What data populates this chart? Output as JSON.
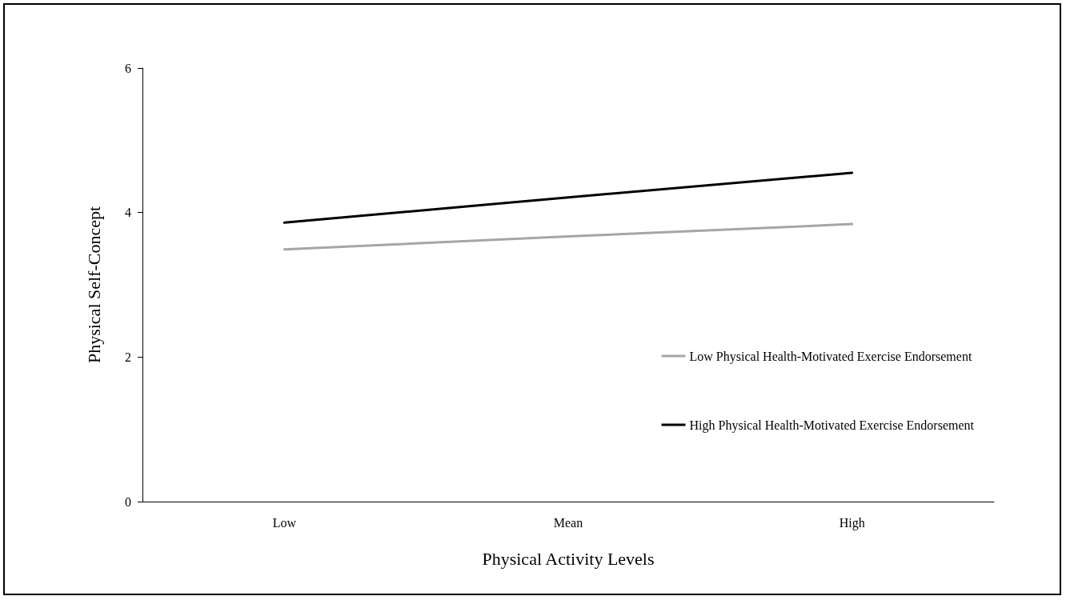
{
  "chart_data": {
    "type": "line",
    "xlabel": "Physical Activity Levels",
    "ylabel": "Physical Self-Concept",
    "categories": [
      "Low",
      "Mean",
      "High"
    ],
    "series": [
      {
        "name": "Low Physical Health-Motivated Exercise Endorsement",
        "color": "#a6a6a6",
        "values": [
          3.49,
          3.67,
          3.84
        ]
      },
      {
        "name": "High Physical Health-Motivated Exercise Endorsement",
        "color": "#000000",
        "values": [
          3.86,
          4.21,
          4.55
        ]
      }
    ],
    "ylim": [
      0,
      6
    ],
    "yticks": [
      0,
      2,
      4,
      6
    ],
    "grid": false,
    "legend": "right",
    "marker": "none",
    "line_style": "solid"
  }
}
